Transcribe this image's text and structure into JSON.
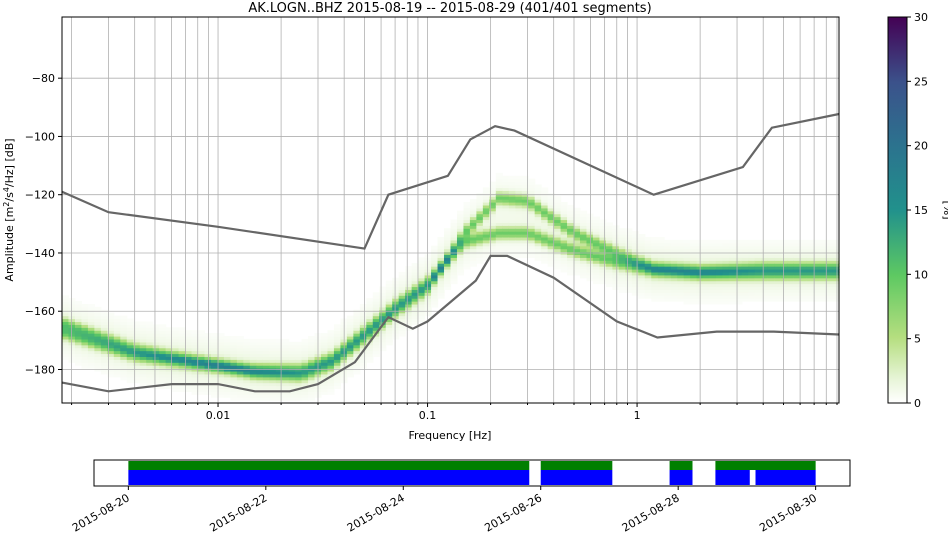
{
  "chart_data": [
    {
      "type": "heatmap",
      "title": "AK.LOGN..BHZ   2015-08-19 -- 2015-08-29  (401/401 segments)",
      "xlabel": "Frequency [Hz]",
      "ylabel_parts": [
        "Amplitude [m",
        "2",
        "/s",
        "4",
        "/Hz] [dB]"
      ],
      "x_scale": "log",
      "xlim": [
        0.0018,
        9.2
      ],
      "ylim": [
        -191.5,
        -59
      ],
      "grid": true,
      "x_tick_labels": [
        {
          "value": 0.01,
          "label": "0.01"
        },
        {
          "value": 0.1,
          "label": "0.1"
        },
        {
          "value": 1,
          "label": "1"
        }
      ],
      "y_ticks": [
        {
          "value": -80,
          "label": "−80"
        },
        {
          "value": -100,
          "label": "−100"
        },
        {
          "value": -120,
          "label": "−120"
        },
        {
          "value": -140,
          "label": "−140"
        },
        {
          "value": -160,
          "label": "−160"
        },
        {
          "value": -180,
          "label": "−180"
        }
      ],
      "noise_models": [
        {
          "color": "#666666",
          "x": [
            0.0018,
            0.003,
            0.01,
            0.05,
            0.065,
            0.125,
            0.16,
            0.21,
            0.26,
            1.2,
            3.2,
            4.4,
            9.2
          ],
          "y": [
            -119,
            -126,
            -131,
            -138.5,
            -120,
            -113.5,
            -101,
            -96.5,
            -98,
            -120,
            -110.5,
            -97,
            -92.3
          ]
        },
        {
          "color": "#666666",
          "x": [
            0.0018,
            0.003,
            0.006,
            0.01,
            0.015,
            0.022,
            0.03,
            0.045,
            0.065,
            0.085,
            0.1,
            0.17,
            0.2,
            0.24,
            0.4,
            0.8,
            1.25,
            2.4,
            4.5,
            9.2
          ],
          "y": [
            -184.5,
            -187.5,
            -185,
            -185,
            -187.5,
            -187.5,
            -185,
            -177.5,
            -162,
            -166,
            -163.5,
            -149.5,
            -141,
            -141,
            -148.5,
            -163.5,
            -169,
            -167,
            -167,
            -168
          ]
        }
      ],
      "colorbar": {
        "label": "[%]",
        "range": [
          0,
          30
        ],
        "ticks": [
          "0",
          "5",
          "10",
          "15",
          "20",
          "25",
          "30"
        ],
        "colormap": "viridis_r with white at 0"
      },
      "ppsd_mode_curves": [
        {
          "name": "",
          "x": [
            0.0018,
            0.004,
            0.008,
            0.015,
            0.025,
            0.035,
            0.05,
            0.07,
            0.1,
            0.15,
            0.22,
            0.3,
            0.5,
            0.8,
            1.2,
            2,
            4,
            9.2
          ],
          "y": [
            -167,
            -175,
            -178,
            -180,
            -180,
            -176,
            -167,
            -158,
            -150,
            -136,
            -133,
            -133,
            -139,
            -143,
            -146,
            -147,
            -147,
            -147
          ]
        },
        {
          "name": "",
          "x": [
            0.0018,
            0.004,
            0.008,
            0.015,
            0.025,
            0.035,
            0.05,
            0.07,
            0.1,
            0.15,
            0.22,
            0.3,
            0.5,
            0.8,
            1.2,
            2,
            4,
            9.2
          ],
          "y": [
            -164,
            -173,
            -177,
            -181,
            -182,
            -178,
            -169,
            -160,
            -152,
            -133,
            -121,
            -122,
            -133,
            -140,
            -145,
            -146,
            -145,
            -145
          ]
        }
      ]
    },
    {
      "type": "timeline",
      "x_tick_labels": [
        "2015-08-20",
        "2015-08-22",
        "2015-08-24",
        "2015-08-26",
        "2015-08-28",
        "2015-08-30"
      ],
      "xlim_days": [
        "2015-08-19 12:00",
        "2015-08-30 12:00"
      ],
      "green_segments": [
        [
          "2015-08-20",
          "2015-08-25 20:00"
        ],
        [
          "2015-08-26",
          "2015-08-27 01:00"
        ],
        [
          "2015-08-27 21:00",
          "2015-08-28 05:00"
        ],
        [
          "2015-08-28 13:00",
          "2015-08-30"
        ]
      ],
      "blue_segments": [
        [
          "2015-08-20",
          "2015-08-25 20:00"
        ],
        [
          "2015-08-26",
          "2015-08-27 01:00"
        ],
        [
          "2015-08-27 21:00",
          "2015-08-28 05:00"
        ],
        [
          "2015-08-28 13:00",
          "2015-08-29 01:00"
        ],
        [
          "2015-08-29 03:00",
          "2015-08-30"
        ]
      ],
      "colors": {
        "green": "#007f00",
        "blue": "#0000ff"
      }
    }
  ]
}
